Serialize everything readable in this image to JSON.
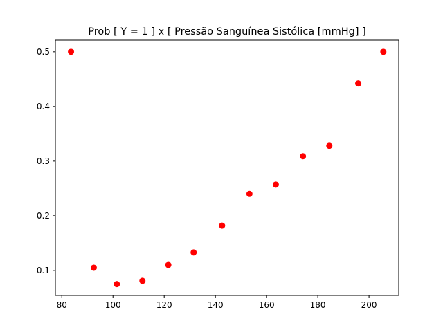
{
  "chart_data": {
    "type": "scatter",
    "title": "Prob [ Y = 1 ] x [ Pressão Sanguínea Sistólica [mmHg] ]",
    "xlabel": "",
    "ylabel": "",
    "xlim": [
      77.5,
      211.6
    ],
    "ylim": [
      0.0543,
      0.5213
    ],
    "xticks": [
      80,
      100,
      120,
      140,
      160,
      180,
      200
    ],
    "yticks": [
      0.1,
      0.2,
      0.3,
      0.4,
      0.5
    ],
    "xtick_labels": [
      "80",
      "100",
      "120",
      "140",
      "160",
      "180",
      "200"
    ],
    "ytick_labels": [
      "0.1",
      "0.2",
      "0.3",
      "0.4",
      "0.5"
    ],
    "marker_color": "#ff0000",
    "grid": false,
    "series": [
      {
        "x": [
          83.6,
          92.5,
          101.5,
          111.5,
          121.6,
          131.5,
          142.6,
          153.3,
          163.6,
          174.2,
          184.5,
          195.8,
          205.6
        ],
        "y": [
          0.5,
          0.105,
          0.075,
          0.081,
          0.11,
          0.133,
          0.182,
          0.24,
          0.257,
          0.309,
          0.328,
          0.442,
          0.5
        ]
      }
    ]
  }
}
